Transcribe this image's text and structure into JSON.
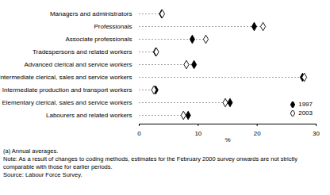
{
  "chart_data": {
    "type": "dot",
    "orientation": "horizontal",
    "categories": [
      "Managers and administrators",
      "Professionals",
      "Associate professionals",
      "Tradespersons and related workers",
      "Advanced clerical and service workers",
      "Intermediate clerical, sales and service workers",
      "Intermediate production and transport workers",
      "Elementary clerical, sales and service workers",
      "Labourers and related workers"
    ],
    "series": [
      {
        "name": "1997",
        "color": "#000000",
        "marker": "diamond",
        "values": [
          3.8,
          19.5,
          9.0,
          2.8,
          9.3,
          27.7,
          2.8,
          15.4,
          8.3
        ]
      },
      {
        "name": "2003",
        "color": "#000000",
        "marker": "diamond-open",
        "values": [
          3.9,
          21.0,
          11.3,
          2.9,
          8.0,
          28.0,
          2.5,
          14.6,
          7.5
        ]
      }
    ],
    "xlim": [
      0,
      30
    ],
    "xticks": [
      0,
      10,
      20,
      30
    ],
    "x_label": "%",
    "legend": "bottom-right",
    "notes": [
      "(a) Annual averages.",
      "Note: As a result of changes to coding methods, estimates for the February 2000 survey onwards are not strictly comparable with those for earlier periods.",
      "Source: Labour Force Survey."
    ]
  }
}
